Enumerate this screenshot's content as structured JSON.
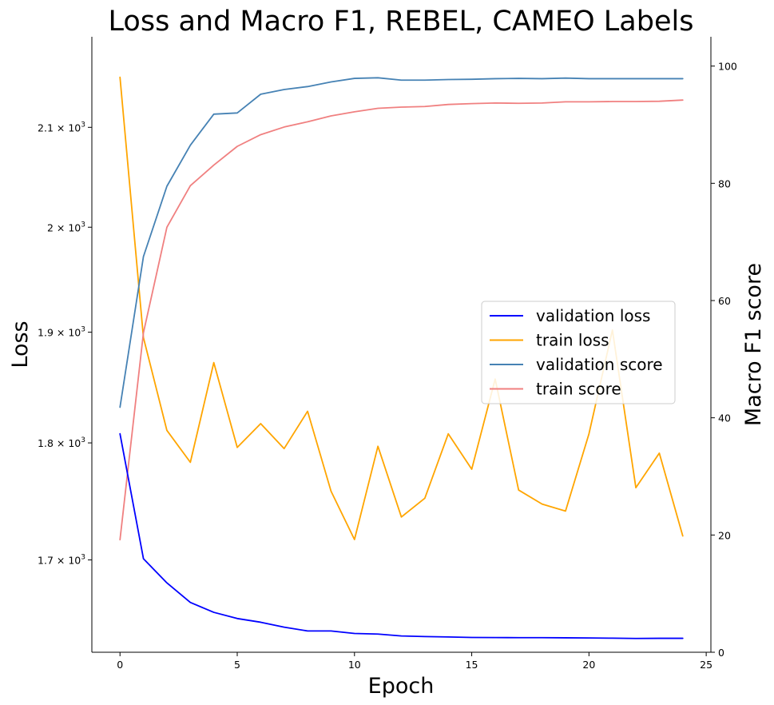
{
  "chart_data": {
    "type": "line",
    "title": "Loss and Macro F1, REBEL, CAMEO Labels",
    "xlabel": "Epoch",
    "ylabel_left": "Loss",
    "ylabel_right": "Macro F1 score",
    "x": [
      0,
      1,
      2,
      3,
      4,
      5,
      6,
      7,
      8,
      9,
      10,
      11,
      12,
      13,
      14,
      15,
      16,
      17,
      18,
      19,
      20,
      21,
      22,
      23,
      24
    ],
    "xlim": [
      -1.2,
      25.2
    ],
    "x_ticks": [
      0,
      5,
      10,
      15,
      20,
      25
    ],
    "y_left": {
      "scale": "log",
      "lim": [
        1625,
        2195
      ],
      "ticks": [
        {
          "value": 1700,
          "base": "1.7",
          "exp": "3"
        },
        {
          "value": 1800,
          "base": "1.8",
          "exp": "3"
        },
        {
          "value": 1900,
          "base": "1.9",
          "exp": "3"
        },
        {
          "value": 2000,
          "base": "2",
          "exp": "3"
        },
        {
          "value": 2100,
          "base": "2.1",
          "exp": "3"
        }
      ],
      "tick_mult": "× 10"
    },
    "y_right": {
      "scale": "linear",
      "lim": [
        0,
        105
      ],
      "ticks": [
        0,
        20,
        40,
        60,
        80,
        100
      ]
    },
    "series": [
      {
        "name": "validation loss",
        "axis": "left",
        "color": "#0000ff",
        "values": [
          1808,
          1701,
          1681,
          1665,
          1657,
          1652,
          1649,
          1645,
          1642,
          1642,
          1640,
          1639.5,
          1638,
          1637.5,
          1637.2,
          1636.8,
          1636.7,
          1636.6,
          1636.6,
          1636.5,
          1636.4,
          1636.2,
          1636,
          1636.1,
          1636.1
        ]
      },
      {
        "name": "train loss",
        "axis": "left",
        "color": "#ffa500",
        "values": [
          2152,
          1895,
          1811,
          1783,
          1872,
          1796,
          1817,
          1795,
          1828,
          1758,
          1717,
          1797,
          1736,
          1752,
          1808,
          1777,
          1857,
          1759,
          1747,
          1741,
          1808,
          1902,
          1761,
          1791,
          1720
        ]
      },
      {
        "name": "validation score",
        "axis": "right",
        "color": "#4682b4",
        "values": [
          41.8,
          67.5,
          79.5,
          86.5,
          91.8,
          92.0,
          95.2,
          96.0,
          96.5,
          97.3,
          97.9,
          98.0,
          97.6,
          97.6,
          97.7,
          97.75,
          97.85,
          97.9,
          97.85,
          97.95,
          97.85,
          97.85,
          97.85,
          97.85,
          97.85
        ]
      },
      {
        "name": "train score",
        "axis": "right",
        "color": "#f08080",
        "values": [
          19.2,
          54.5,
          72.5,
          79.6,
          83.1,
          86.3,
          88.3,
          89.6,
          90.5,
          91.5,
          92.2,
          92.8,
          93.0,
          93.1,
          93.45,
          93.6,
          93.7,
          93.65,
          93.7,
          93.9,
          93.9,
          93.95,
          93.95,
          94.0,
          94.2
        ]
      }
    ],
    "legend": {
      "placement": "center-right"
    },
    "grid": false
  }
}
